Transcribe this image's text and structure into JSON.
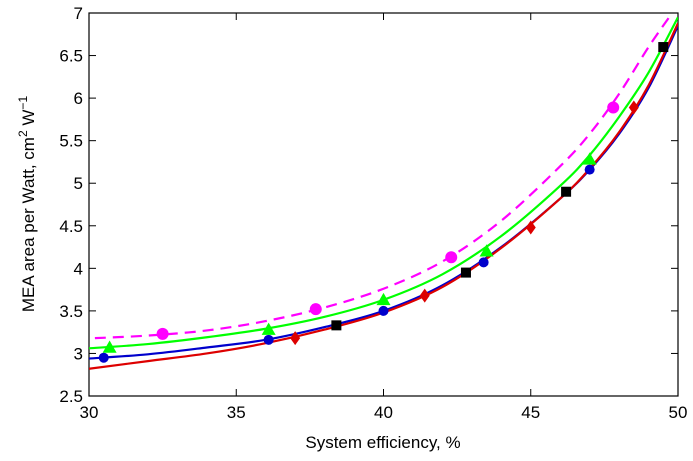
{
  "chart_data": {
    "type": "line",
    "title": "",
    "xlabel": "System efficiency, %",
    "ylabel": {
      "text": "MEA area per Watt, cm",
      "sup1": "2",
      "mid": " W",
      "sup2": "−1"
    },
    "xlim": [
      30,
      50
    ],
    "ylim": [
      2.5,
      7
    ],
    "xticks": [
      "30",
      "35",
      "40",
      "45",
      "50"
    ],
    "yticks": [
      "2.5",
      "3",
      "3.5",
      "4",
      "4.5",
      "5",
      "5.5",
      "6",
      "6.5",
      "7"
    ],
    "grid": false,
    "legend": "none",
    "series": [
      {
        "color": "#ff00ff",
        "line_style": "dashed",
        "marker": "circle",
        "curve": [
          [
            30.2,
            3.18
          ],
          [
            32,
            3.21
          ],
          [
            34,
            3.27
          ],
          [
            36,
            3.38
          ],
          [
            38,
            3.54
          ],
          [
            40,
            3.76
          ],
          [
            42,
            4.08
          ],
          [
            44,
            4.56
          ],
          [
            46,
            5.2
          ],
          [
            47,
            5.58
          ],
          [
            48,
            6.05
          ],
          [
            49,
            6.6
          ],
          [
            49.8,
            7.0
          ]
        ],
        "markers": [
          [
            32.5,
            3.23
          ],
          [
            37.7,
            3.52
          ],
          [
            42.3,
            4.13
          ],
          [
            47.8,
            5.89
          ]
        ]
      },
      {
        "color": "#00ff00",
        "line_style": "solid",
        "marker": "triangle",
        "curve": [
          [
            30,
            3.06
          ],
          [
            32,
            3.11
          ],
          [
            34,
            3.19
          ],
          [
            36,
            3.29
          ],
          [
            38,
            3.43
          ],
          [
            40,
            3.63
          ],
          [
            42,
            3.93
          ],
          [
            44,
            4.38
          ],
          [
            46,
            4.97
          ],
          [
            47,
            5.33
          ],
          [
            48,
            5.78
          ],
          [
            49,
            6.3
          ],
          [
            50,
            6.95
          ]
        ],
        "markers": [
          [
            30.7,
            3.07
          ],
          [
            36.1,
            3.28
          ],
          [
            40,
            3.63
          ],
          [
            43.5,
            4.2
          ],
          [
            47,
            5.28
          ]
        ]
      },
      {
        "color": "#0000cc",
        "line_style": "solid",
        "marker": "circle",
        "curve": [
          [
            30,
            2.94
          ],
          [
            32,
            2.99
          ],
          [
            34,
            3.07
          ],
          [
            36,
            3.16
          ],
          [
            38,
            3.31
          ],
          [
            40,
            3.5
          ],
          [
            42,
            3.8
          ],
          [
            44,
            4.25
          ],
          [
            46,
            4.82
          ],
          [
            47,
            5.16
          ],
          [
            48,
            5.58
          ],
          [
            49,
            6.12
          ],
          [
            50,
            6.85
          ]
        ],
        "markers": [
          [
            30.5,
            2.95
          ],
          [
            36.1,
            3.16
          ],
          [
            40,
            3.5
          ],
          [
            43.4,
            4.07
          ],
          [
            47,
            5.16
          ]
        ]
      },
      {
        "color": "#dd0000",
        "line_style": "solid",
        "marker": "diamond",
        "curve": [
          [
            30,
            2.82
          ],
          [
            32,
            2.91
          ],
          [
            34,
            3.0
          ],
          [
            36,
            3.12
          ],
          [
            38,
            3.28
          ],
          [
            40,
            3.48
          ],
          [
            42,
            3.78
          ],
          [
            44,
            4.24
          ],
          [
            46,
            4.82
          ],
          [
            47,
            5.17
          ],
          [
            48,
            5.6
          ],
          [
            49,
            6.15
          ],
          [
            50,
            6.88
          ]
        ],
        "markers": [
          [
            37,
            3.18
          ],
          [
            41.4,
            3.68
          ],
          [
            45,
            4.48
          ],
          [
            48.5,
            5.89
          ]
        ]
      },
      {
        "color": "#000000",
        "line_style": "none",
        "marker": "square",
        "markers": [
          [
            38.4,
            3.33
          ],
          [
            42.8,
            3.95
          ],
          [
            46.2,
            4.9
          ],
          [
            49.5,
            6.6
          ]
        ]
      }
    ]
  }
}
